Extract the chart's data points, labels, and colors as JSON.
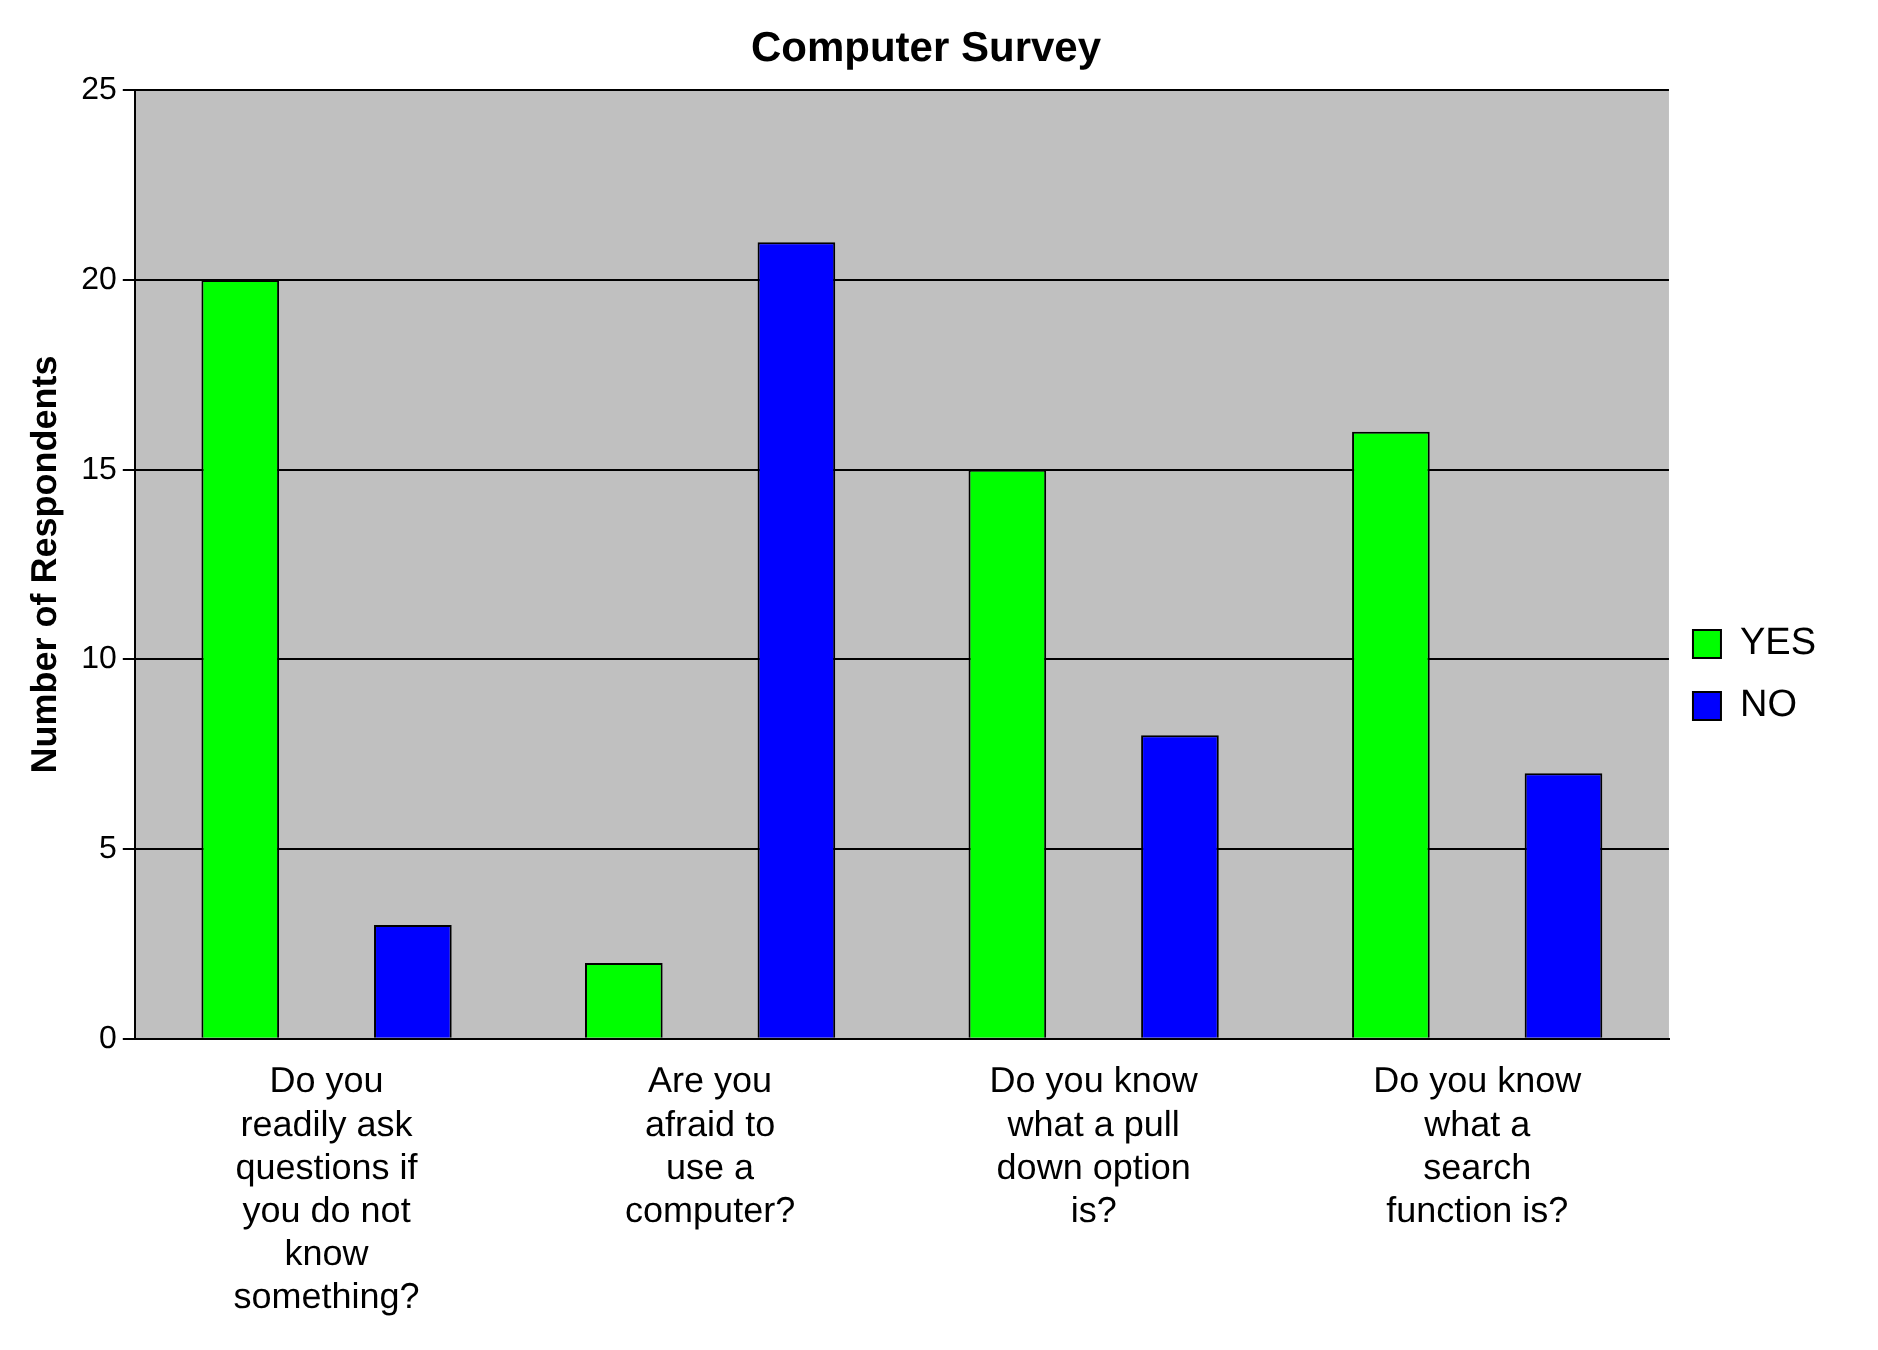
{
  "chart_data": {
    "type": "bar",
    "title": "Computer Survey",
    "ylabel": "Number of Respondents",
    "categories": [
      "Do you readily ask questions if you do not know something?",
      "Are you afraid to use a computer?",
      "Do you know what a pull down option is?",
      "Do you know what a search function is?"
    ],
    "series": [
      {
        "name": "YES",
        "color": "#00ff00",
        "values": [
          20,
          2,
          15,
          16
        ]
      },
      {
        "name": "NO",
        "color": "#0000ff",
        "values": [
          3,
          21,
          8,
          7
        ]
      }
    ],
    "ylim": [
      0,
      25
    ],
    "yticks": [
      0,
      5,
      10,
      15,
      20,
      25
    ],
    "grid": "y",
    "legend": "right"
  }
}
